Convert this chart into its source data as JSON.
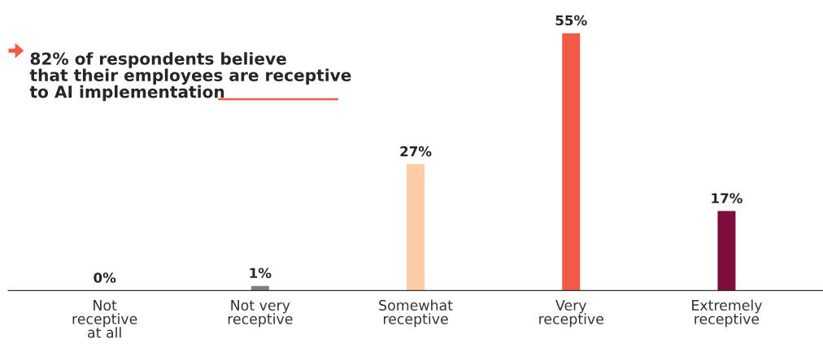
{
  "chart_data": {
    "type": "bar",
    "categories": [
      "Not\nreceptive\nat all",
      "Not very\nreceptive",
      "Somewhat\nreceptive",
      "Very\nreceptive",
      "Extremely\nreceptive"
    ],
    "values": [
      0,
      1,
      27,
      55,
      17
    ],
    "colors": [
      "#7f7f7f",
      "#7f7f7f",
      "#fccca4",
      "#f05a46",
      "#7d0d3d"
    ],
    "value_labels": [
      "0%",
      "1%",
      "27%",
      "55%",
      "17%"
    ],
    "annotations": [
      "82% of respondents believe\nthat their employees are receptive\nto AI implementation"
    ],
    "grid": false,
    "legend": false
  }
}
